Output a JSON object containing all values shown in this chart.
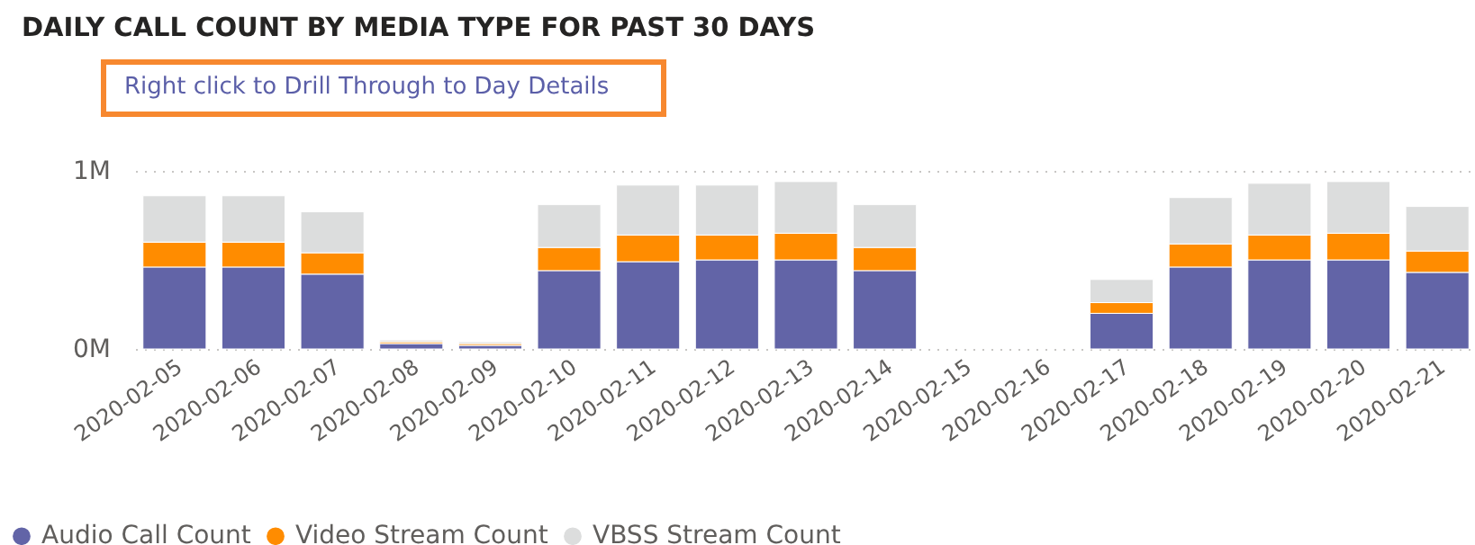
{
  "chart_data": {
    "type": "bar",
    "stacked": true,
    "title": "DAILY CALL COUNT BY MEDIA TYPE FOR PAST 30 DAYS",
    "subtitle": "Right click to Drill Through to Day Details",
    "categories": [
      "2020-02-05",
      "2020-02-06",
      "2020-02-07",
      "2020-02-08",
      "2020-02-09",
      "2020-02-10",
      "2020-02-11",
      "2020-02-12",
      "2020-02-13",
      "2020-02-14",
      "2020-02-15",
      "2020-02-16",
      "2020-02-17",
      "2020-02-18",
      "2020-02-19",
      "2020-02-20",
      "2020-02-21"
    ],
    "series": [
      {
        "name": "Audio Call Count",
        "color": "#6264a7",
        "values": [
          0.46,
          0.46,
          0.42,
          0.03,
          0.02,
          0.44,
          0.49,
          0.5,
          0.5,
          0.44,
          null,
          null,
          0.2,
          0.46,
          0.5,
          0.5,
          0.43
        ]
      },
      {
        "name": "Video Stream Count",
        "color": "#ff8c00",
        "values": [
          0.14,
          0.14,
          0.12,
          0.01,
          0.01,
          0.13,
          0.15,
          0.14,
          0.15,
          0.13,
          null,
          null,
          0.06,
          0.13,
          0.14,
          0.15,
          0.12
        ]
      },
      {
        "name": "VBSS Stream Count",
        "color": "#dcdddd",
        "values": [
          0.26,
          0.26,
          0.23,
          0.01,
          0.01,
          0.24,
          0.28,
          0.28,
          0.29,
          0.24,
          null,
          null,
          0.13,
          0.26,
          0.29,
          0.29,
          0.25
        ]
      }
    ],
    "ylim": [
      0,
      1
    ],
    "yticks": [
      {
        "value": 0,
        "label": "0M"
      },
      {
        "value": 1,
        "label": "1M"
      }
    ],
    "grid": "y",
    "legend": "bottom left"
  }
}
